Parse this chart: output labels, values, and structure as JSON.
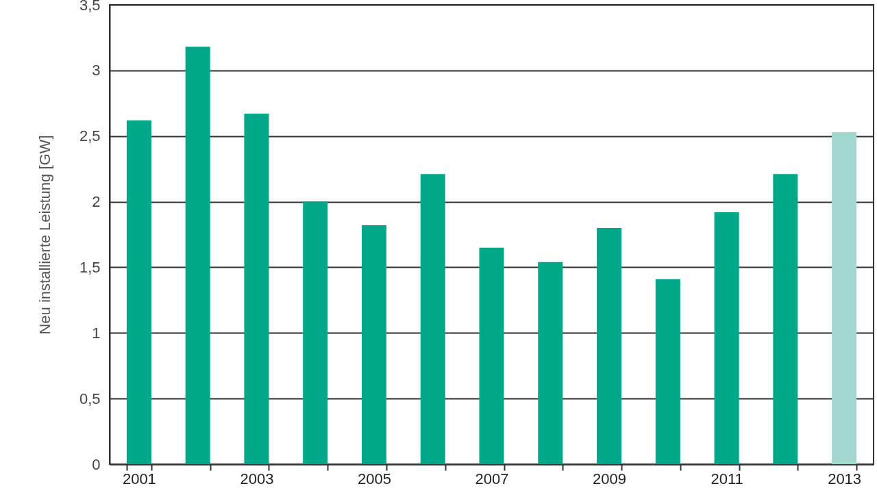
{
  "chart_data": {
    "type": "bar",
    "ylabel": "Neu installierte Leistung [GW]",
    "categories": [
      "2001",
      null,
      "2003",
      null,
      "2005",
      null,
      "2007",
      null,
      "2009",
      null,
      "2011",
      null,
      "2013"
    ],
    "values": [
      2.62,
      3.18,
      2.67,
      2.0,
      1.82,
      2.21,
      1.65,
      1.54,
      1.8,
      1.41,
      1.92,
      2.21,
      2.53
    ],
    "colors": [
      "#00a88a",
      "#00a88a",
      "#00a88a",
      "#00a88a",
      "#00a88a",
      "#00a88a",
      "#00a88a",
      "#00a88a",
      "#00a88a",
      "#00a88a",
      "#00a88a",
      "#00a88a",
      "#a2d8cf"
    ],
    "ylim": [
      0,
      3.5
    ],
    "yticks": [
      0,
      {
        "value": 0.5,
        "label": "0,5"
      },
      1,
      {
        "value": 1.5,
        "label": "1,5"
      },
      2,
      {
        "value": 2.5,
        "label": "2,5"
      },
      3,
      {
        "value": 3.5,
        "label": "3,5"
      }
    ],
    "grid": "y"
  }
}
